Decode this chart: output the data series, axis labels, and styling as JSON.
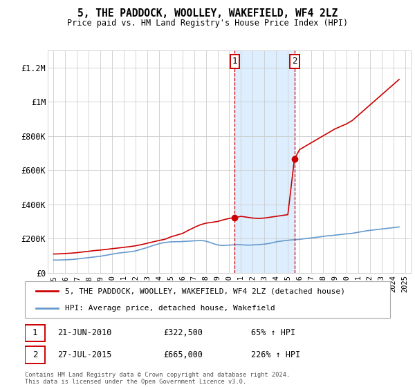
{
  "title": "5, THE PADDOCK, WOOLLEY, WAKEFIELD, WF4 2LZ",
  "subtitle": "Price paid vs. HM Land Registry's House Price Index (HPI)",
  "legend_line1": "5, THE PADDOCK, WOOLLEY, WAKEFIELD, WF4 2LZ (detached house)",
  "legend_line2": "HPI: Average price, detached house, Wakefield",
  "footnote": "Contains HM Land Registry data © Crown copyright and database right 2024.\nThis data is licensed under the Open Government Licence v3.0.",
  "sale1_date": "21-JUN-2010",
  "sale1_price": 322500,
  "sale1_label": "1",
  "sale1_pct": "65% ↑ HPI",
  "sale2_date": "27-JUL-2015",
  "sale2_price": 665000,
  "sale2_label": "2",
  "sale2_pct": "226% ↑ HPI",
  "sale1_x": 2010.47,
  "sale2_x": 2015.56,
  "property_color": "#cc0000",
  "hpi_color": "#6699cc",
  "shade_color": "#ddeeff",
  "background_color": "#ffffff",
  "grid_color": "#cccccc",
  "ylim": [
    0,
    1300000
  ],
  "xlim": [
    1994.5,
    2025.5
  ],
  "yticks": [
    0,
    200000,
    400000,
    600000,
    800000,
    1000000,
    1200000
  ],
  "ytick_labels": [
    "£0",
    "£200K",
    "£400K",
    "£600K",
    "£800K",
    "£1M",
    "£1.2M"
  ],
  "xticks": [
    1995,
    1996,
    1997,
    1998,
    1999,
    2000,
    2001,
    2002,
    2003,
    2004,
    2005,
    2006,
    2007,
    2008,
    2009,
    2010,
    2011,
    2012,
    2013,
    2014,
    2015,
    2016,
    2017,
    2018,
    2019,
    2020,
    2021,
    2022,
    2023,
    2024,
    2025
  ],
  "hpi_data_x": [
    1995,
    1995.25,
    1995.5,
    1995.75,
    1996,
    1996.25,
    1996.5,
    1996.75,
    1997,
    1997.25,
    1997.5,
    1997.75,
    1998,
    1998.25,
    1998.5,
    1998.75,
    1999,
    1999.25,
    1999.5,
    1999.75,
    2000,
    2000.25,
    2000.5,
    2000.75,
    2001,
    2001.25,
    2001.5,
    2001.75,
    2002,
    2002.25,
    2002.5,
    2002.75,
    2003,
    2003.25,
    2003.5,
    2003.75,
    2004,
    2004.25,
    2004.5,
    2004.75,
    2005,
    2005.25,
    2005.5,
    2005.75,
    2006,
    2006.25,
    2006.5,
    2006.75,
    2007,
    2007.25,
    2007.5,
    2007.75,
    2008,
    2008.25,
    2008.5,
    2008.75,
    2009,
    2009.25,
    2009.5,
    2009.75,
    2010,
    2010.25,
    2010.5,
    2010.75,
    2011,
    2011.25,
    2011.5,
    2011.75,
    2012,
    2012.25,
    2012.5,
    2012.75,
    2013,
    2013.25,
    2013.5,
    2013.75,
    2014,
    2014.25,
    2014.5,
    2014.75,
    2015,
    2015.25,
    2015.5,
    2015.75,
    2016,
    2016.25,
    2016.5,
    2016.75,
    2017,
    2017.25,
    2017.5,
    2017.75,
    2018,
    2018.25,
    2018.5,
    2018.75,
    2019,
    2019.25,
    2019.5,
    2019.75,
    2020,
    2020.25,
    2020.5,
    2020.75,
    2021,
    2021.25,
    2021.5,
    2021.75,
    2022,
    2022.25,
    2022.5,
    2022.75,
    2023,
    2023.25,
    2023.5,
    2023.75,
    2024,
    2024.25,
    2024.5
  ],
  "hpi_data_y": [
    75000,
    74500,
    75000,
    75500,
    76000,
    77000,
    78000,
    79000,
    81000,
    83000,
    85000,
    87000,
    89000,
    91000,
    93000,
    95000,
    97000,
    100000,
    103000,
    106000,
    109000,
    112000,
    115000,
    117000,
    119000,
    121000,
    123000,
    125000,
    128000,
    133000,
    138000,
    143000,
    148000,
    154000,
    160000,
    165000,
    170000,
    174000,
    177000,
    179000,
    181000,
    181500,
    182000,
    182000,
    183000,
    184000,
    185000,
    186000,
    187000,
    188000,
    188500,
    188000,
    185000,
    180000,
    174000,
    168000,
    163000,
    161000,
    160000,
    161000,
    162000,
    163000,
    165000,
    165000,
    164000,
    163000,
    162000,
    162000,
    163000,
    164000,
    165000,
    166000,
    168000,
    170000,
    173000,
    177000,
    181000,
    184000,
    186000,
    188000,
    190000,
    192000,
    193000,
    194000,
    196000,
    198000,
    200000,
    202000,
    204000,
    206000,
    208000,
    210000,
    213000,
    215000,
    217000,
    218000,
    220000,
    222000,
    224000,
    226000,
    228000,
    229000,
    231000,
    234000,
    237000,
    240000,
    243000,
    246000,
    248000,
    250000,
    252000,
    254000,
    256000,
    258000,
    260000,
    262000,
    264000,
    266000,
    268000
  ],
  "property_data_x": [
    1995,
    1995.5,
    1996,
    1996.5,
    1997,
    1997.5,
    1998,
    1998.5,
    1999,
    1999.5,
    2000,
    2000.5,
    2001,
    2001.5,
    2002,
    2002.5,
    2003,
    2003.5,
    2004,
    2004.5,
    2005,
    2005.5,
    2006,
    2006.5,
    2007,
    2007.5,
    2008,
    2008.5,
    2009,
    2009.5,
    2010,
    2010.47,
    2011,
    2011.5,
    2012,
    2012.5,
    2013,
    2013.5,
    2014,
    2014.5,
    2015,
    2015.56,
    2016,
    2016.5,
    2017,
    2017.5,
    2018,
    2018.5,
    2019,
    2019.5,
    2020,
    2020.5,
    2021,
    2021.5,
    2022,
    2022.5,
    2023,
    2023.5,
    2024,
    2024.5
  ],
  "property_data_y": [
    110000,
    111000,
    113000,
    115000,
    118000,
    122000,
    126000,
    130000,
    133000,
    137000,
    141000,
    145000,
    149000,
    153000,
    158000,
    165000,
    173000,
    181000,
    189000,
    196000,
    210000,
    220000,
    230000,
    248000,
    265000,
    280000,
    290000,
    295000,
    300000,
    310000,
    318000,
    322500,
    330000,
    325000,
    320000,
    318000,
    320000,
    325000,
    330000,
    335000,
    340000,
    665000,
    720000,
    740000,
    760000,
    780000,
    800000,
    820000,
    840000,
    855000,
    870000,
    890000,
    920000,
    950000,
    980000,
    1010000,
    1040000,
    1070000,
    1100000,
    1130000
  ]
}
